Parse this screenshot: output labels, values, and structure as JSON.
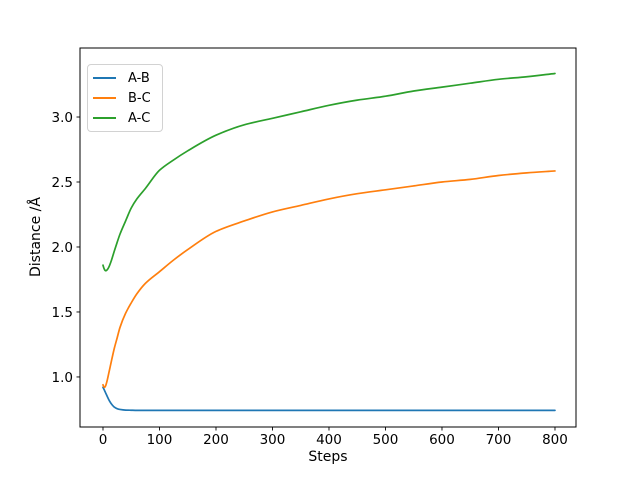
{
  "chart_data": {
    "type": "line",
    "title": "",
    "xlabel": "Steps",
    "ylabel": "Distance /Å",
    "xlim": [
      -40.7,
      837.2
    ],
    "ylim": [
      0.615,
      3.531
    ],
    "xticks": [
      0,
      100,
      200,
      300,
      400,
      500,
      600,
      700,
      800
    ],
    "xtick_labels": [
      "0",
      "100",
      "200",
      "300",
      "400",
      "500",
      "600",
      "700",
      "800"
    ],
    "yticks": [
      1.0,
      1.5,
      2.0,
      2.5,
      3.0
    ],
    "ytick_labels": [
      "1.0",
      "1.5",
      "2.0",
      "2.5",
      "3.0"
    ],
    "grid": false,
    "legend_position": "upper left",
    "x": [
      0,
      1,
      2,
      3,
      4,
      5,
      6,
      8,
      10,
      12,
      15,
      20,
      25,
      30,
      40,
      50,
      60,
      75,
      100,
      125,
      150,
      200,
      250,
      300,
      350,
      400,
      450,
      500,
      550,
      600,
      650,
      700,
      750,
      800
    ],
    "series": [
      {
        "name": "A-B",
        "color": "#1f77b4",
        "values": [
          0.92,
          0.912,
          0.903,
          0.893,
          0.884,
          0.874,
          0.865,
          0.846,
          0.828,
          0.812,
          0.792,
          0.768,
          0.756,
          0.75,
          0.745,
          0.744,
          0.743,
          0.743,
          0.743,
          0.743,
          0.743,
          0.743,
          0.743,
          0.743,
          0.743,
          0.743,
          0.743,
          0.743,
          0.743,
          0.743,
          0.743,
          0.743,
          0.743,
          0.743
        ]
      },
      {
        "name": "B-C",
        "color": "#ff7f0e",
        "values": [
          0.94,
          0.928,
          0.922,
          0.921,
          0.926,
          0.936,
          0.95,
          0.984,
          1.024,
          1.064,
          1.124,
          1.22,
          1.3,
          1.38,
          1.49,
          1.57,
          1.64,
          1.72,
          1.81,
          1.9,
          1.98,
          2.12,
          2.2,
          2.27,
          2.32,
          2.37,
          2.41,
          2.44,
          2.47,
          2.5,
          2.52,
          2.55,
          2.57,
          2.585
        ]
      },
      {
        "name": "A-C",
        "color": "#2ca02c",
        "values": [
          1.86,
          1.845,
          1.833,
          1.824,
          1.819,
          1.817,
          1.819,
          1.828,
          1.842,
          1.862,
          1.898,
          1.968,
          2.035,
          2.098,
          2.2,
          2.3,
          2.37,
          2.45,
          2.59,
          2.67,
          2.74,
          2.86,
          2.94,
          2.99,
          3.04,
          3.09,
          3.13,
          3.16,
          3.2,
          3.23,
          3.26,
          3.29,
          3.31,
          3.335
        ]
      }
    ]
  },
  "style": {
    "background": "#ffffff",
    "spine_color": "#000000",
    "tick_color": "#000000",
    "legend_border": "#d2d2d2",
    "line_width": 1.7
  }
}
